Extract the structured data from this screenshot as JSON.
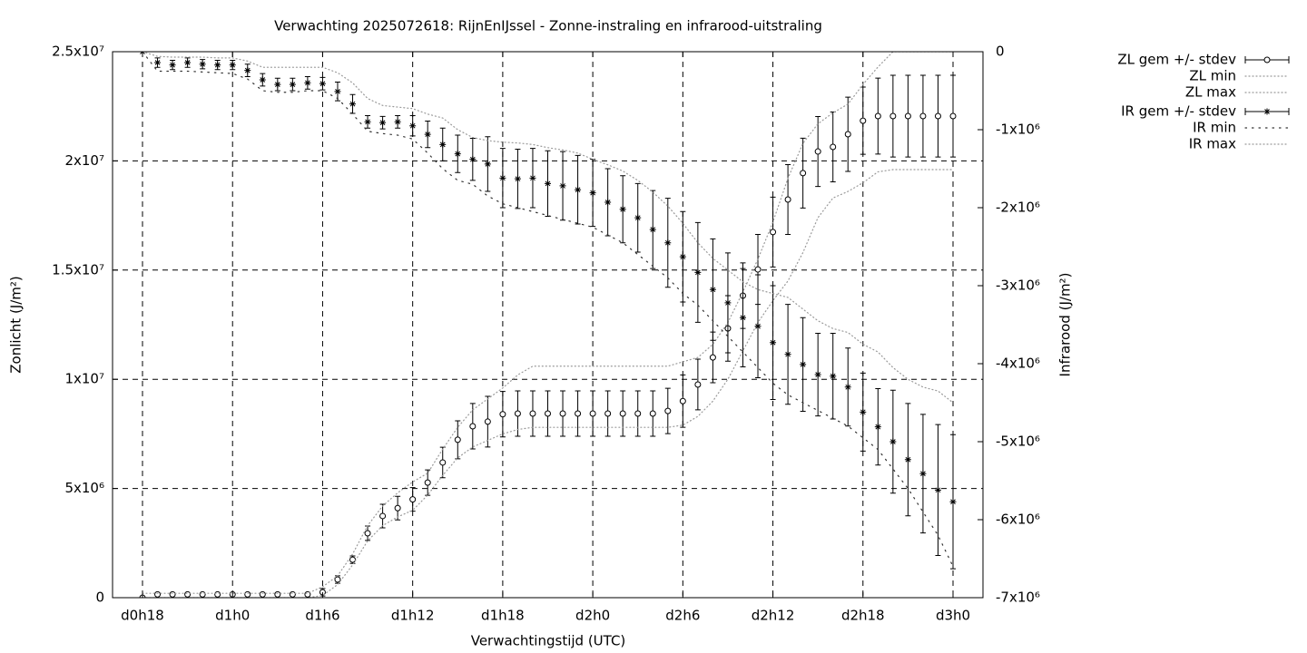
{
  "chart_data": {
    "type": "errorbar",
    "title": "Verwachting 2025072618: RijnEnIJssel - Zonne-instraling en infrarood-uitstraling",
    "xlabel": "Verwachtingstijd (UTC)",
    "ylabel": "Zonlicht (J/m²)",
    "y2label": "Infrarood (J/m²)",
    "grid": true,
    "legend": "outside-right",
    "categories": [
      "d0h18",
      null,
      null,
      null,
      null,
      null,
      "d1h0",
      null,
      null,
      null,
      null,
      null,
      "d1h6",
      null,
      null,
      null,
      null,
      null,
      "d1h12",
      null,
      null,
      null,
      null,
      null,
      "d1h18",
      null,
      null,
      null,
      null,
      null,
      "d2h0",
      null,
      null,
      null,
      null,
      null,
      "d2h6",
      null,
      null,
      null,
      null,
      null,
      "d2h12",
      null,
      null,
      null,
      null,
      null,
      "d2h18",
      null,
      null,
      null,
      null,
      null,
      "d3h0"
    ],
    "ylim": [
      0,
      25000000.0
    ],
    "yticks": [
      0,
      {
        "value": 5000000.0,
        "label": "5x10⁶"
      },
      {
        "value": 10000000.0,
        "label": "1x10⁷"
      },
      {
        "value": 15000000.0,
        "label": "1.5x10⁷"
      },
      {
        "value": 20000000.0,
        "label": "2x10⁷"
      },
      {
        "value": 25000000.0,
        "label": "2.5x10⁷"
      }
    ],
    "y2lim": [
      -7000000.0,
      0
    ],
    "y2ticks": [
      0,
      {
        "value": -1000000.0,
        "label": "-1x10⁶"
      },
      {
        "value": -2000000.0,
        "label": "-2x10⁶"
      },
      {
        "value": -3000000.0,
        "label": "-3x10⁶"
      },
      {
        "value": -4000000.0,
        "label": "-4x10⁶"
      },
      {
        "value": -5000000.0,
        "label": "-5x10⁶"
      },
      {
        "value": -6000000.0,
        "label": "-6x10⁶"
      },
      {
        "value": -7000000.0,
        "label": "-7x10⁶"
      }
    ],
    "series": [
      {
        "name": "ZL gem +/- stdev",
        "color": "#000000",
        "style": "errorbars",
        "marker": "circle",
        "values": [
          0,
          150000.0,
          150000.0,
          150000.0,
          150000.0,
          150000.0,
          150000.0,
          150000.0,
          150000.0,
          150000.0,
          150000.0,
          150000.0,
          250000.0,
          830000.0,
          1740000.0,
          2950000.0,
          3740000.0,
          4100000.0,
          4500000.0,
          5270000.0,
          6190000.0,
          7230000.0,
          7850000.0,
          8060000.0,
          8400000.0,
          8430000.0,
          8430000.0,
          8430000.0,
          8430000.0,
          8430000.0,
          8430000.0,
          8430000.0,
          8430000.0,
          8430000.0,
          8430000.0,
          8550000.0,
          9000000.0,
          9760000.0,
          11000000.0,
          12330000.0,
          13830000.0,
          15030000.0,
          16740000.0,
          18230000.0,
          19440000.0,
          20430000.0,
          20640000.0,
          21220000.0,
          21840000.0,
          22050000.0,
          22050000.0,
          22050000.0,
          22050000.0,
          22050000.0,
          22050000.0
        ],
        "errors": [
          0,
          50000.0,
          50000.0,
          50000.0,
          50000.0,
          50000.0,
          50000.0,
          50000.0,
          50000.0,
          50000.0,
          50000.0,
          50000.0,
          170000.0,
          170000.0,
          170000.0,
          330000.0,
          540000.0,
          540000.0,
          540000.0,
          580000.0,
          700000.0,
          870000.0,
          1040000.0,
          1160000.0,
          1040000.0,
          1040000.0,
          1040000.0,
          1040000.0,
          1040000.0,
          1040000.0,
          1040000.0,
          1040000.0,
          1040000.0,
          1040000.0,
          1040000.0,
          1040000.0,
          1200000.0,
          1160000.0,
          1160000.0,
          1500000.0,
          1500000.0,
          1600000.0,
          1600000.0,
          1600000.0,
          1600000.0,
          1600000.0,
          1600000.0,
          1700000.0,
          1540000.0,
          1740000.0,
          1870000.0,
          1870000.0,
          1870000.0,
          1870000.0,
          1870000.0
        ]
      },
      {
        "name": "ZL min",
        "color": "#999999",
        "style": "dotted",
        "dash": "1,3",
        "values": [
          0,
          0,
          0,
          0,
          0,
          0,
          0,
          0,
          0,
          0,
          0,
          0,
          100000.0,
          600000.0,
          1500000.0,
          2600000.0,
          3300000.0,
          3700000.0,
          4000000.0,
          4700000.0,
          5600000.0,
          6400000.0,
          6900000.0,
          7200000.0,
          7500000.0,
          7700000.0,
          7800000.0,
          7800000.0,
          7800000.0,
          7800000.0,
          7800000.0,
          7800000.0,
          7800000.0,
          7800000.0,
          7800000.0,
          7800000.0,
          7900000.0,
          8300000.0,
          9000000.0,
          10000000.0,
          11300000.0,
          12600000.0,
          13600000.0,
          14500000.0,
          15800000.0,
          17400000.0,
          18300000.0,
          18600000.0,
          19000000.0,
          19500000.0,
          19600000.0,
          19600000.0,
          19600000.0,
          19600000.0,
          19600000.0
        ]
      },
      {
        "name": "ZL max",
        "color": "#999999",
        "style": "dotted",
        "dash": "1,3",
        "values": [
          200000.0,
          200000.0,
          200000.0,
          200000.0,
          200000.0,
          200000.0,
          200000.0,
          200000.0,
          200000.0,
          200000.0,
          200000.0,
          200000.0,
          500000.0,
          1000000.0,
          2000000.0,
          3300000.0,
          4200000.0,
          4800000.0,
          5300000.0,
          5700000.0,
          6800000.0,
          7800000.0,
          8600000.0,
          9100000.0,
          9600000.0,
          10200000.0,
          10600000.0,
          10600000.0,
          10600000.0,
          10600000.0,
          10600000.0,
          10600000.0,
          10600000.0,
          10600000.0,
          10600000.0,
          10600000.0,
          10800000.0,
          11000000.0,
          11600000.0,
          12600000.0,
          14000000.0,
          15500000.0,
          17200000.0,
          19200000.0,
          20800000.0,
          21700000.0,
          22200000.0,
          22600000.0,
          23500000.0,
          24300000.0,
          25000000.0,
          25000000.0,
          25000000.0,
          25000000.0,
          25000000.0
        ]
      },
      {
        "name": "IR gem +/- stdev",
        "color": "#000000",
        "style": "errorbars",
        "marker": "star",
        "axis": "y2",
        "values": [
          0,
          -140000.0,
          -170000.0,
          -140000.0,
          -160000.0,
          -170000.0,
          -170000.0,
          -240000.0,
          -360000.0,
          -420000.0,
          -420000.0,
          -400000.0,
          -410000.0,
          -510000.0,
          -670000.0,
          -900000.0,
          -910000.0,
          -900000.0,
          -950000.0,
          -1060000.0,
          -1190000.0,
          -1310000.0,
          -1380000.0,
          -1440000.0,
          -1620000.0,
          -1630000.0,
          -1620000.0,
          -1690000.0,
          -1720000.0,
          -1770000.0,
          -1810000.0,
          -1930000.0,
          -2020000.0,
          -2130000.0,
          -2280000.0,
          -2450000.0,
          -2630000.0,
          -2830000.0,
          -3050000.0,
          -3220000.0,
          -3410000.0,
          -3520000.0,
          -3730000.0,
          -3880000.0,
          -4010000.0,
          -4140000.0,
          -4160000.0,
          -4300000.0,
          -4620000.0,
          -4810000.0,
          -5000000.0,
          -5230000.0,
          -5410000.0,
          -5620000.0,
          -5770000.0
        ],
        "errors": [
          0,
          60000.0,
          60000.0,
          60000.0,
          60000.0,
          60000.0,
          60000.0,
          80000.0,
          80000.0,
          80000.0,
          80000.0,
          80000.0,
          80000.0,
          120000.0,
          120000.0,
          80000.0,
          80000.0,
          80000.0,
          130000.0,
          170000.0,
          210000.0,
          240000.0,
          270000.0,
          350000.0,
          380000.0,
          380000.0,
          380000.0,
          420000.0,
          440000.0,
          440000.0,
          430000.0,
          430000.0,
          430000.0,
          440000.0,
          500000.0,
          570000.0,
          580000.0,
          640000.0,
          650000.0,
          640000.0,
          630000.0,
          660000.0,
          730000.0,
          640000.0,
          600000.0,
          530000.0,
          550000.0,
          500000.0,
          500000.0,
          490000.0,
          660000.0,
          720000.0,
          760000.0,
          840000.0,
          860000.0
        ]
      },
      {
        "name": "IR min",
        "color": "#333333",
        "style": "dotted",
        "dash": "1.5,6",
        "axis": "y2",
        "values": [
          0,
          -250000.0,
          -250000.0,
          -250000.0,
          -260000.0,
          -270000.0,
          -280000.0,
          -350000.0,
          -500000.0,
          -520000.0,
          -520000.0,
          -500000.0,
          -500000.0,
          -600000.0,
          -800000.0,
          -1020000.0,
          -1050000.0,
          -1070000.0,
          -1120000.0,
          -1300000.0,
          -1500000.0,
          -1650000.0,
          -1700000.0,
          -1850000.0,
          -1950000.0,
          -2000000.0,
          -2050000.0,
          -2100000.0,
          -2150000.0,
          -2200000.0,
          -2250000.0,
          -2350000.0,
          -2450000.0,
          -2600000.0,
          -2750000.0,
          -2900000.0,
          -3100000.0,
          -3250000.0,
          -3450000.0,
          -3650000.0,
          -3850000.0,
          -4050000.0,
          -4250000.0,
          -4400000.0,
          -4500000.0,
          -4600000.0,
          -4700000.0,
          -4800000.0,
          -4950000.0,
          -5100000.0,
          -5350000.0,
          -5600000.0,
          -5900000.0,
          -6200000.0,
          -6600000.0
        ]
      },
      {
        "name": "IR max",
        "color": "#999999",
        "style": "dotted",
        "dash": "1,3",
        "axis": "y2",
        "values": [
          0,
          -60000.0,
          -70000.0,
          -70000.0,
          -70000.0,
          -80000.0,
          -80000.0,
          -120000.0,
          -200000.0,
          -200000.0,
          -200000.0,
          -200000.0,
          -200000.0,
          -270000.0,
          -400000.0,
          -600000.0,
          -690000.0,
          -710000.0,
          -730000.0,
          -800000.0,
          -850000.0,
          -1000000.0,
          -1100000.0,
          -1140000.0,
          -1160000.0,
          -1170000.0,
          -1190000.0,
          -1230000.0,
          -1260000.0,
          -1300000.0,
          -1380000.0,
          -1450000.0,
          -1530000.0,
          -1650000.0,
          -1800000.0,
          -1980000.0,
          -2200000.0,
          -2450000.0,
          -2650000.0,
          -2800000.0,
          -2950000.0,
          -3050000.0,
          -3100000.0,
          -3150000.0,
          -3300000.0,
          -3450000.0,
          -3550000.0,
          -3600000.0,
          -3750000.0,
          -3850000.0,
          -4050000.0,
          -4200000.0,
          -4300000.0,
          -4350000.0,
          -4500000.0
        ]
      }
    ]
  }
}
